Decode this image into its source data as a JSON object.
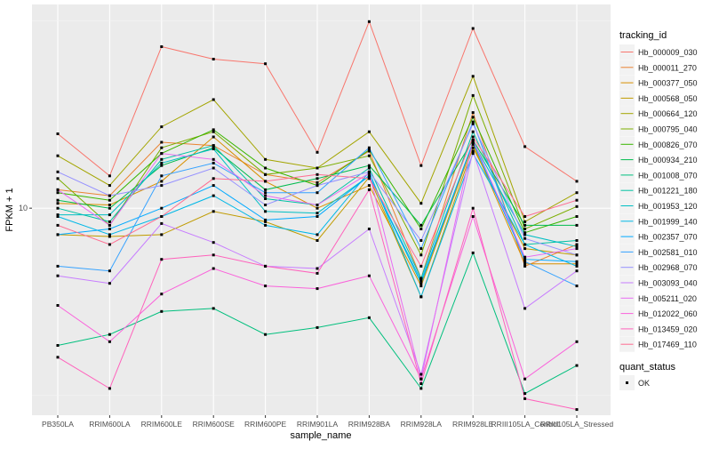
{
  "chart_data": {
    "type": "line",
    "title": "",
    "xlabel": "sample_name",
    "ylabel": "FPKM + 1",
    "y_scale": "log10",
    "y_ticks": [
      10
    ],
    "y_tick_labels": [
      "10"
    ],
    "ylim": [
      2.8,
      35
    ],
    "grid": true,
    "legend_position": "right",
    "categories": [
      "PB350LA",
      "RRIM600LA",
      "RRIM600LE",
      "RRIM600SE",
      "RRIM600PE",
      "RRIM901LA",
      "RRIM928BA",
      "RRIM928LA",
      "RRIM928LE",
      "RRIII105LA_Control",
      "RRIII105LA_Stressed"
    ],
    "legend_title": "tracking_id",
    "legend2_title": "quant_status",
    "legend2_label": "OK",
    "series": [
      {
        "name": "Hb_000009_030",
        "color": "#F8766D",
        "values": [
          15.8,
          12.2,
          27,
          25,
          24.3,
          14.1,
          31.5,
          13.0,
          30.2,
          14.6,
          11.8
        ]
      },
      {
        "name": "Hb_000011_270",
        "color": "#EA8331",
        "values": [
          11.2,
          10.8,
          15,
          14.7,
          12.3,
          11.7,
          14.2,
          6.5,
          18.0,
          7.0,
          8.0
        ]
      },
      {
        "name": "Hb_000377_050",
        "color": "#D89000",
        "values": [
          10.3,
          10.2,
          11.8,
          15.5,
          11.8,
          10.0,
          11.5,
          6.2,
          14.8,
          7.1,
          7.1
        ]
      },
      {
        "name": "Hb_000568_050",
        "color": "#C09B00",
        "values": [
          8.5,
          8.4,
          8.5,
          9.8,
          9.2,
          8.2,
          12.1,
          5.8,
          14.5,
          7.8,
          7.5
        ]
      },
      {
        "name": "Hb_000664_120",
        "color": "#A3A500",
        "values": [
          13.8,
          11.5,
          16.5,
          19.5,
          13.5,
          12.8,
          16.0,
          10.3,
          22.5,
          9.2,
          11.0
        ]
      },
      {
        "name": "Hb_000795_040",
        "color": "#7CAE00",
        "values": [
          12.0,
          9.0,
          14.5,
          16.0,
          12.3,
          12.8,
          13.8,
          7.5,
          20.0,
          8.8,
          10.1
        ]
      },
      {
        "name": "Hb_000826_070",
        "color": "#39B600",
        "values": [
          11.0,
          10.5,
          14.0,
          16.2,
          12.8,
          11.5,
          14.3,
          8.8,
          17.5,
          8.6,
          9.5
        ]
      },
      {
        "name": "Hb_000934_210",
        "color": "#00BB4E",
        "values": [
          10.5,
          10.0,
          13.0,
          14.5,
          11.2,
          12.0,
          13.0,
          9.0,
          15.2,
          9.0,
          9.0
        ]
      },
      {
        "name": "Hb_001008_070",
        "color": "#00BF7D",
        "values": [
          4.3,
          4.6,
          5.3,
          5.4,
          4.6,
          4.8,
          5.1,
          3.3,
          7.6,
          3.2,
          3.8
        ]
      },
      {
        "name": "Hb_001221_180",
        "color": "#00C1A3",
        "values": [
          10.0,
          9.2,
          13.5,
          14.7,
          10.6,
          10.2,
          12.8,
          6.5,
          16.0,
          8.0,
          8.2
        ]
      },
      {
        "name": "Hb_001953_120",
        "color": "#00BFC4",
        "values": [
          9.6,
          9.6,
          13.2,
          14.4,
          9.8,
          9.7,
          12.2,
          6.3,
          15.0,
          8.5,
          7.9
        ]
      },
      {
        "name": "Hb_001999_140",
        "color": "#00B8E7",
        "values": [
          9.5,
          8.5,
          9.5,
          10.8,
          9.0,
          8.5,
          12.5,
          5.8,
          14.0,
          8.0,
          7.0
        ]
      },
      {
        "name": "Hb_002357_070",
        "color": "#00A9FF",
        "values": [
          8.5,
          8.8,
          10.0,
          11.5,
          9.3,
          9.5,
          12.2,
          6.4,
          15.0,
          7.3,
          7.2
        ]
      },
      {
        "name": "Hb_002581_010",
        "color": "#35A2FF",
        "values": [
          7.0,
          6.8,
          12.2,
          13.2,
          11.0,
          11.0,
          14.5,
          7.8,
          17.0,
          7.2,
          6.2
        ]
      },
      {
        "name": "Hb_002968_070",
        "color": "#9590FF",
        "values": [
          12.5,
          10.8,
          11.5,
          12.8,
          10.2,
          11.5,
          12.5,
          8.2,
          16.8,
          8.3,
          7.5
        ]
      },
      {
        "name": "Hb_003093_040",
        "color": "#C77CFF",
        "values": [
          6.6,
          6.3,
          9.1,
          8.1,
          7.0,
          6.9,
          8.8,
          3.6,
          14.2,
          5.4,
          6.8
        ]
      },
      {
        "name": "Hb_005211_020",
        "color": "#E76BF3",
        "values": [
          11.2,
          9.0,
          14.0,
          13.5,
          10.8,
          10.2,
          12.4,
          3.5,
          15.2,
          7.4,
          7.8
        ]
      },
      {
        "name": "Hb_012022_060",
        "color": "#FA62DB",
        "values": [
          5.5,
          4.4,
          5.9,
          6.9,
          6.2,
          6.1,
          6.6,
          3.5,
          9.5,
          3.5,
          4.4
        ]
      },
      {
        "name": "Hb_013459_020",
        "color": "#FF62BC",
        "values": [
          4.0,
          3.3,
          7.3,
          7.5,
          7.0,
          6.7,
          11.2,
          3.4,
          10.0,
          3.1,
          2.9
        ]
      },
      {
        "name": "Hb_017469_110",
        "color": "#FF6C91",
        "values": [
          9.0,
          8.0,
          9.5,
          12.0,
          11.8,
          12.3,
          12.0,
          7.0,
          15.5,
          9.5,
          10.5
        ]
      }
    ]
  }
}
